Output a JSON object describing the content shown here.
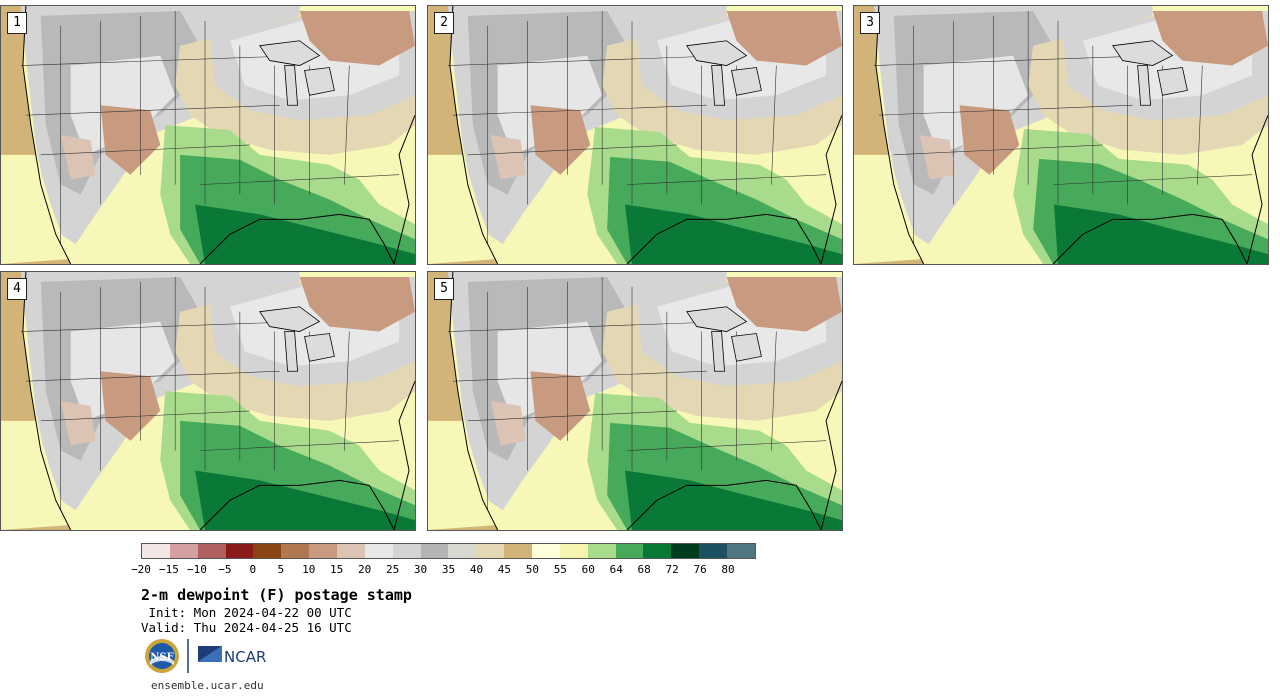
{
  "panels": [
    {
      "label": "1"
    },
    {
      "label": "2"
    },
    {
      "label": "3"
    },
    {
      "label": "4"
    },
    {
      "label": "5"
    }
  ],
  "colorbar": {
    "colors": [
      "#f4e6e6",
      "#d4a0a0",
      "#b06060",
      "#8b1a1a",
      "#8b4513",
      "#b07850",
      "#c89a80",
      "#dcc4b4",
      "#e8e8e8",
      "#d4d4d4",
      "#b4b4b4",
      "#d8d8d0",
      "#e4d8b4",
      "#d2b478",
      "#ffffdc",
      "#f5f5b0",
      "#a8dc8c",
      "#46aa5a",
      "#0a7837",
      "#003c1e",
      "#1e5064",
      "#507882"
    ],
    "ticks": [
      "−20",
      "−15",
      "−10",
      "−5",
      "0",
      "5",
      "10",
      "15",
      "20",
      "25",
      "30",
      "35",
      "40",
      "45",
      "50",
      "55",
      "60",
      "64",
      "68",
      "72",
      "76",
      "80"
    ]
  },
  "title": "2-m dewpoint (F) postage stamp",
  "init": " Init: Mon 2024-04-22 00 UTC",
  "valid": "Valid: Thu 2024-04-25 16 UTC",
  "logos": {
    "nsf": "NSF",
    "ncar": "NCAR"
  },
  "website": "ensemble.ucar.edu"
}
